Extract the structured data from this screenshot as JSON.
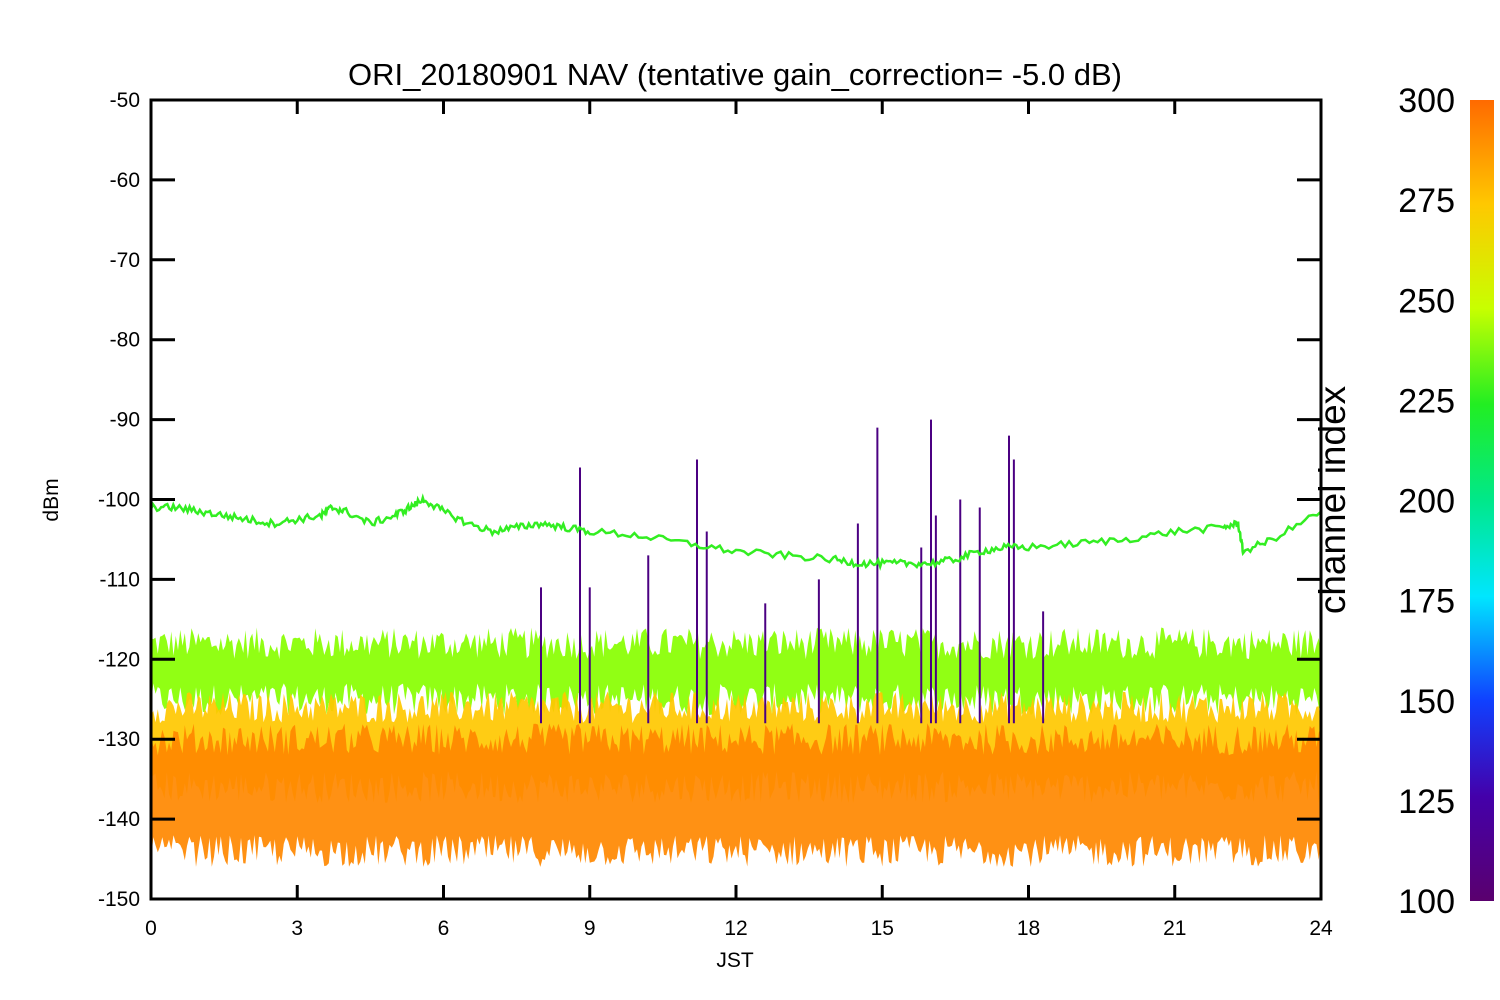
{
  "chart_data": {
    "type": "line",
    "title": "ORI_20180901 NAV (tentative gain_correction= -5.0 dB)",
    "xlabel": "JST",
    "ylabel": "dBm",
    "xlim": [
      0,
      24
    ],
    "ylim": [
      -150,
      -50
    ],
    "x_ticks": [
      "0",
      "3",
      "6",
      "9",
      "12",
      "15",
      "18",
      "21",
      "24"
    ],
    "y_ticks": [
      "-50",
      "-60",
      "-70",
      "-80",
      "-90",
      "-100",
      "-110",
      "-120",
      "-130",
      "-140",
      "-150"
    ],
    "grid": false,
    "colorbar": {
      "label": "channel index",
      "range": [
        100,
        300
      ],
      "ticks": [
        "100",
        "125",
        "150",
        "175",
        "200",
        "225",
        "250",
        "275",
        "300"
      ],
      "colormap": "rainbow"
    },
    "series": [
      {
        "color": "#33ee22",
        "x": [
          0,
          0.5,
          1,
          1.5,
          2,
          2.5,
          3,
          3.5,
          3.7,
          4,
          4.5,
          5,
          5.3,
          5.6,
          6,
          6.5,
          7,
          7.5,
          8,
          8.5,
          9,
          10,
          11,
          12,
          13,
          14,
          14.5,
          15,
          15.5,
          16,
          16.5,
          17,
          17.5,
          18,
          19,
          20,
          21,
          22,
          22.3,
          22.4,
          23,
          24
        ],
        "values": [
          -101,
          -101,
          -101.5,
          -102,
          -102.5,
          -103,
          -102.5,
          -102,
          -101,
          -101.5,
          -103,
          -102,
          -101,
          -100,
          -101.5,
          -103,
          -104,
          -103.5,
          -103,
          -103.5,
          -104,
          -104.5,
          -105.5,
          -106.5,
          -107,
          -107.5,
          -108,
          -108,
          -108,
          -108,
          -107.5,
          -106.5,
          -106,
          -106,
          -105.5,
          -105,
          -104,
          -103.5,
          -103,
          -106.5,
          -105,
          -101.5
        ]
      }
    ],
    "bands": [
      {
        "color": "#88ff00",
        "lower": -125,
        "upper": -118
      },
      {
        "color": "#ffc800",
        "lower": -136,
        "upper": -126
      },
      {
        "color": "#ff8800",
        "lower": -144,
        "upper": -130
      }
    ],
    "spikes": [
      {
        "x": 8.8,
        "y": -96
      },
      {
        "x": 8.0,
        "y": -111
      },
      {
        "x": 9.0,
        "y": -111
      },
      {
        "x": 10.2,
        "y": -107
      },
      {
        "x": 11.2,
        "y": -95
      },
      {
        "x": 12.6,
        "y": -113
      },
      {
        "x": 13.7,
        "y": -110
      },
      {
        "x": 14.5,
        "y": -103
      },
      {
        "x": 14.9,
        "y": -91
      },
      {
        "x": 16.0,
        "y": -90
      },
      {
        "x": 16.1,
        "y": -102
      },
      {
        "x": 16.6,
        "y": -100
      },
      {
        "x": 17.0,
        "y": -101
      },
      {
        "x": 17.6,
        "y": -92
      },
      {
        "x": 17.7,
        "y": -95
      },
      {
        "x": 18.3,
        "y": -114
      },
      {
        "x": 15.8,
        "y": -106
      },
      {
        "x": 11.4,
        "y": -104
      }
    ]
  }
}
